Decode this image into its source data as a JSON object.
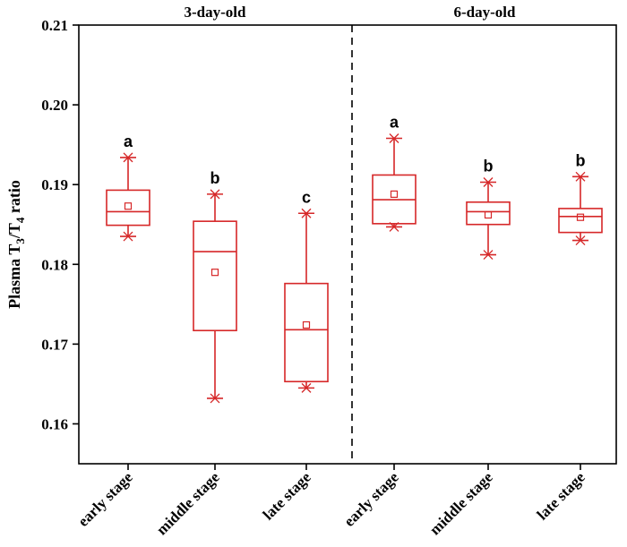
{
  "chart_data": {
    "type": "box",
    "ylabel": {
      "prefix": "Plasma T",
      "sub1": "3",
      "mid": "/T",
      "sub2": "4",
      "suffix": " ratio"
    },
    "ylim": [
      0.155,
      0.21
    ],
    "yticks": [
      "0.16",
      "0.17",
      "0.18",
      "0.19",
      "0.20",
      "0.21"
    ],
    "groups": [
      {
        "label": "3-day-old",
        "categories": [
          "early stage",
          "middle stage",
          "late stage"
        ]
      },
      {
        "label": "6-day-old",
        "categories": [
          "early stage",
          "middle stage",
          "late stage"
        ]
      }
    ],
    "boxes": [
      {
        "group": "3-day-old",
        "category": "early stage",
        "whisker_low": 0.1835,
        "q1": 0.1849,
        "median": 0.1866,
        "q3": 0.1893,
        "whisker_high": 0.1934,
        "mean": 0.1873,
        "letter": "a"
      },
      {
        "group": "3-day-old",
        "category": "middle stage",
        "whisker_low": 0.1632,
        "q1": 0.1717,
        "median": 0.1816,
        "q3": 0.1854,
        "whisker_high": 0.1888,
        "mean": 0.179,
        "letter": "b"
      },
      {
        "group": "3-day-old",
        "category": "late stage",
        "whisker_low": 0.1645,
        "q1": 0.1653,
        "median": 0.1718,
        "q3": 0.1776,
        "whisker_high": 0.1864,
        "mean": 0.1724,
        "letter": "c"
      },
      {
        "group": "6-day-old",
        "category": "early stage",
        "whisker_low": 0.1847,
        "q1": 0.1851,
        "median": 0.1881,
        "q3": 0.1912,
        "whisker_high": 0.1958,
        "mean": 0.1888,
        "letter": "a"
      },
      {
        "group": "6-day-old",
        "category": "middle stage",
        "whisker_low": 0.1812,
        "q1": 0.185,
        "median": 0.1866,
        "q3": 0.1878,
        "whisker_high": 0.1903,
        "mean": 0.1862,
        "letter": "b"
      },
      {
        "group": "6-day-old",
        "category": "late stage",
        "whisker_low": 0.183,
        "q1": 0.184,
        "median": 0.186,
        "q3": 0.187,
        "whisker_high": 0.191,
        "mean": 0.1859,
        "letter": "b"
      }
    ],
    "colors": {
      "box": "#d62728",
      "axis": "#000000",
      "divider": "#000000"
    },
    "divider": "dashed vertical line between groups",
    "grid": false
  }
}
